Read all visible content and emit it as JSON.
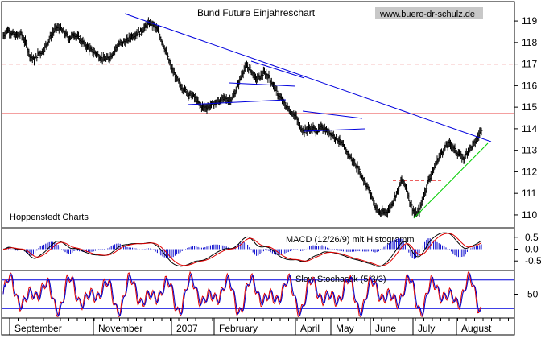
{
  "chart_data": [
    {
      "type": "line",
      "title": "Bund Future Einjahreschart",
      "watermark": "www.buero-dr-schulz.de",
      "source_label": "Hoppenstedt Charts",
      "x_labels": [
        "September",
        "November",
        "2007",
        "February",
        "April",
        "May",
        "June",
        "July",
        "August"
      ],
      "y_ticks": [
        "119",
        "118",
        "117",
        "116",
        "115",
        "114",
        "113",
        "112",
        "111",
        "110"
      ],
      "ylim": [
        109.4,
        119.9
      ],
      "series": [
        {
          "values": [
            118.3,
            118.6,
            118.4,
            118.3,
            118.4,
            118.0,
            117.4,
            117.2,
            117.5,
            117.6,
            118.0,
            118.4,
            118.7,
            118.6,
            118.4,
            118.2,
            118.4,
            118.2,
            118.0,
            117.8,
            117.6,
            117.5,
            117.3,
            117.2,
            117.3,
            117.6,
            117.9,
            118.0,
            118.1,
            118.3,
            118.4,
            118.5,
            118.7,
            118.9,
            118.8,
            118.5,
            118.0,
            117.4,
            116.8,
            116.4,
            116.0,
            115.8,
            115.6,
            115.5,
            115.2,
            115.0,
            115.0,
            115.1,
            115.2,
            115.3,
            115.4,
            115.3,
            115.5,
            116.0,
            116.6,
            116.9,
            116.7,
            116.3,
            116.4,
            116.6,
            116.4,
            116.0,
            115.6,
            115.3,
            115.0,
            114.8,
            114.6,
            114.1,
            113.9,
            114.0,
            114.0,
            113.9,
            114.1,
            113.9,
            113.8,
            113.6,
            113.4,
            113.1,
            112.8,
            112.5,
            112.2,
            111.8,
            111.4,
            111.0,
            110.4,
            110.1,
            110.1,
            110.2,
            110.6,
            111.1,
            111.6,
            111.3,
            110.5,
            110.0,
            110.2,
            110.9,
            111.6,
            112.0,
            112.5,
            112.9,
            113.2,
            113.3,
            113.0,
            112.8,
            112.6,
            113.0,
            113.2,
            113.5,
            114.0
          ]
        }
      ],
      "support_resistance_levels": [
        117.0,
        114.7
      ]
    },
    {
      "type": "bar",
      "title": "MACD (12/26/9) mit Histogramm",
      "y_ticks": [
        "0.5",
        "0.0",
        "-0.5"
      ],
      "ylim": [
        -0.9,
        0.9
      ]
    },
    {
      "type": "line",
      "title": "Slow Stochastik (5/3/3)",
      "y_ticks": [
        "50"
      ],
      "ylim": [
        0,
        100
      ],
      "reference_levels": [
        80,
        20
      ]
    }
  ]
}
